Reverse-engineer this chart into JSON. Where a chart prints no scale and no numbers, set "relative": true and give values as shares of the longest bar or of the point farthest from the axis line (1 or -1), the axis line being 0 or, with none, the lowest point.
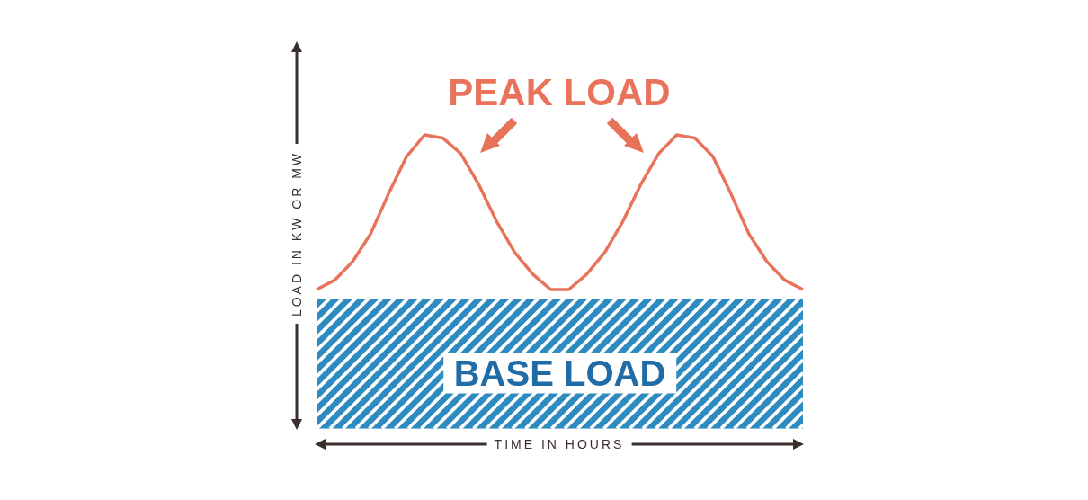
{
  "chart_data": {
    "type": "line",
    "relative": true,
    "xlabel": "TIME IN HOURS",
    "ylabel": "LOAD IN KW OR MW",
    "categories": [
      null,
      null,
      null,
      null,
      null,
      null,
      null,
      null,
      null,
      null,
      null,
      null,
      null,
      null,
      null,
      null,
      null,
      null,
      null,
      null,
      null,
      null,
      null,
      null,
      null,
      null,
      null,
      null
    ],
    "series": [
      {
        "name": "PEAK LOAD",
        "color": "#e8735a",
        "values": [
          0.5,
          0.53,
          0.59,
          0.68,
          0.81,
          0.93,
          1,
          0.99,
          0.94,
          0.84,
          0.72,
          0.62,
          0.55,
          0.5,
          0.5,
          0.55,
          0.62,
          0.72,
          0.84,
          0.94,
          1,
          0.99,
          0.93,
          0.81,
          0.68,
          0.59,
          0.53,
          0.5
        ]
      }
    ],
    "bands": [
      {
        "axis": "y",
        "from": 0.05,
        "to": 0.47,
        "label": "BASE LOAD",
        "color": "#2e8bc0"
      }
    ]
  }
}
